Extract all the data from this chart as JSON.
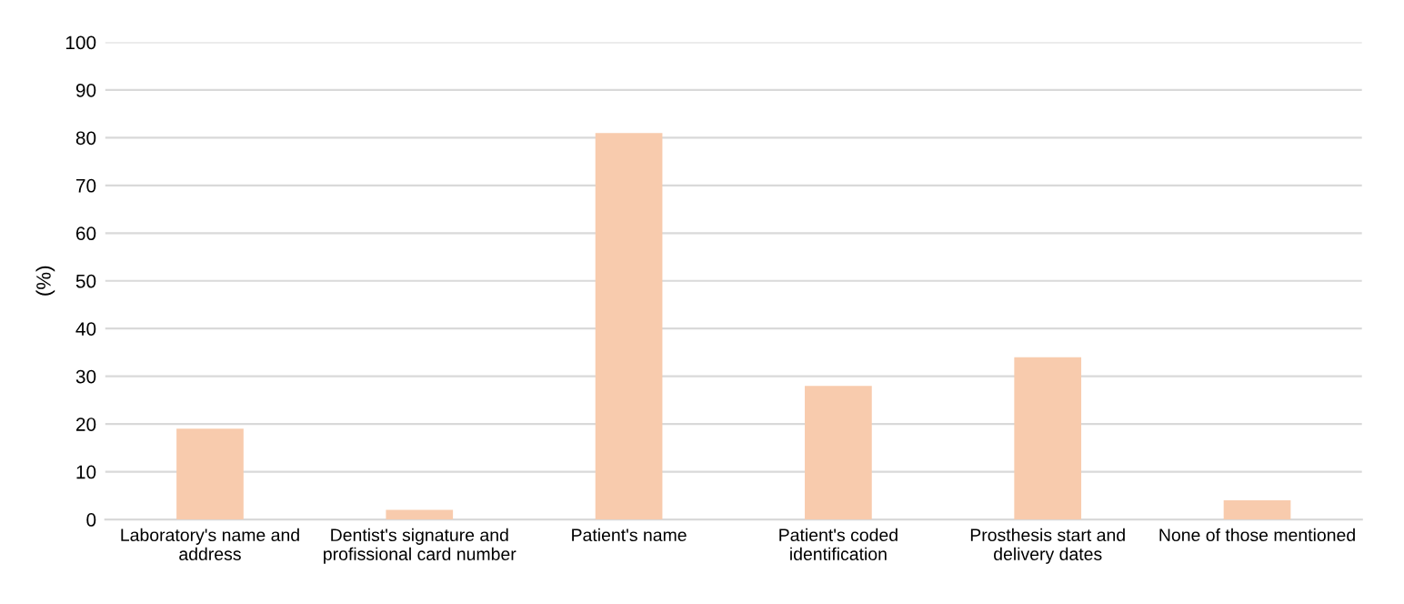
{
  "chart_data": {
    "type": "bar",
    "ylabel": "(%)",
    "categories": [
      "Laboratory's name and\naddress",
      "Dentist's signature and\nprofissional card number",
      "Patient's name",
      "Patient's coded\nidentification",
      "Prosthesis start and\ndelivery dates",
      "None of those mentioned"
    ],
    "values": [
      19,
      2,
      81,
      28,
      34,
      4
    ],
    "color": "#f8cbad",
    "ylim": [
      0,
      100
    ],
    "yticks": [
      0,
      10,
      20,
      30,
      40,
      50,
      60,
      70,
      80,
      90,
      100
    ],
    "grid": "y"
  }
}
